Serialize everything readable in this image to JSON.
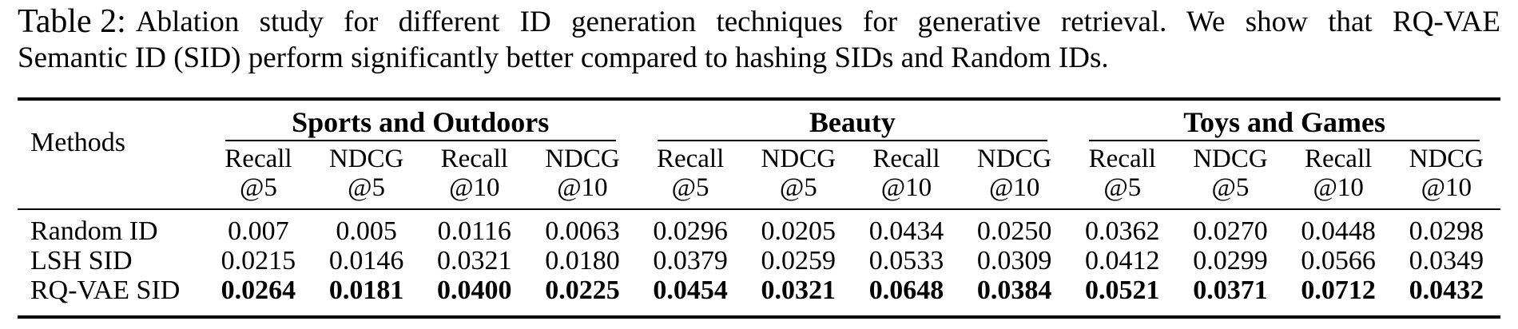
{
  "caption": {
    "label": "Table 2:",
    "line1": "Ablation study for different ID generation techniques for generative retrieval. We show that RQ-VAE",
    "line2": "Semantic ID (SID) perform significantly better compared to hashing SIDs and Random IDs."
  },
  "table": {
    "methods_header": "Methods",
    "groups": [
      {
        "label": "Sports and Outdoors"
      },
      {
        "label": "Beauty"
      },
      {
        "label": "Toys and Games"
      }
    ],
    "subcols": [
      {
        "line1": "Recall",
        "line2": "@5"
      },
      {
        "line1": "NDCG",
        "line2": "@5"
      },
      {
        "line1": "Recall",
        "line2": "@10"
      },
      {
        "line1": "NDCG",
        "line2": "@10"
      },
      {
        "line1": "Recall",
        "line2": "@5"
      },
      {
        "line1": "NDCG",
        "line2": "@5"
      },
      {
        "line1": "Recall",
        "line2": "@10"
      },
      {
        "line1": "NDCG",
        "line2": "@10"
      },
      {
        "line1": "Recall",
        "line2": "@5"
      },
      {
        "line1": "NDCG",
        "line2": "@5"
      },
      {
        "line1": "Recall",
        "line2": "@10"
      },
      {
        "line1": "NDCG",
        "line2": "@10"
      }
    ],
    "rows": [
      {
        "method": "Random ID",
        "bold": false,
        "values": [
          "0.007",
          "0.005",
          "0.0116",
          "0.0063",
          "0.0296",
          "0.0205",
          "0.0434",
          "0.0250",
          "0.0362",
          "0.0270",
          "0.0448",
          "0.0298"
        ]
      },
      {
        "method": "LSH SID",
        "bold": false,
        "values": [
          "0.0215",
          "0.0146",
          "0.0321",
          "0.0180",
          "0.0379",
          "0.0259",
          "0.0533",
          "0.0309",
          "0.0412",
          "0.0299",
          "0.0566",
          "0.0349"
        ]
      },
      {
        "method": "RQ-VAE SID",
        "bold": true,
        "values": [
          "0.0264",
          "0.0181",
          "0.0400",
          "0.0225",
          "0.0454",
          "0.0321",
          "0.0648",
          "0.0384",
          "0.0521",
          "0.0371",
          "0.0712",
          "0.0432"
        ]
      }
    ]
  },
  "colors": {
    "text": "#000000",
    "background": "#ffffff",
    "rule": "#000000"
  }
}
